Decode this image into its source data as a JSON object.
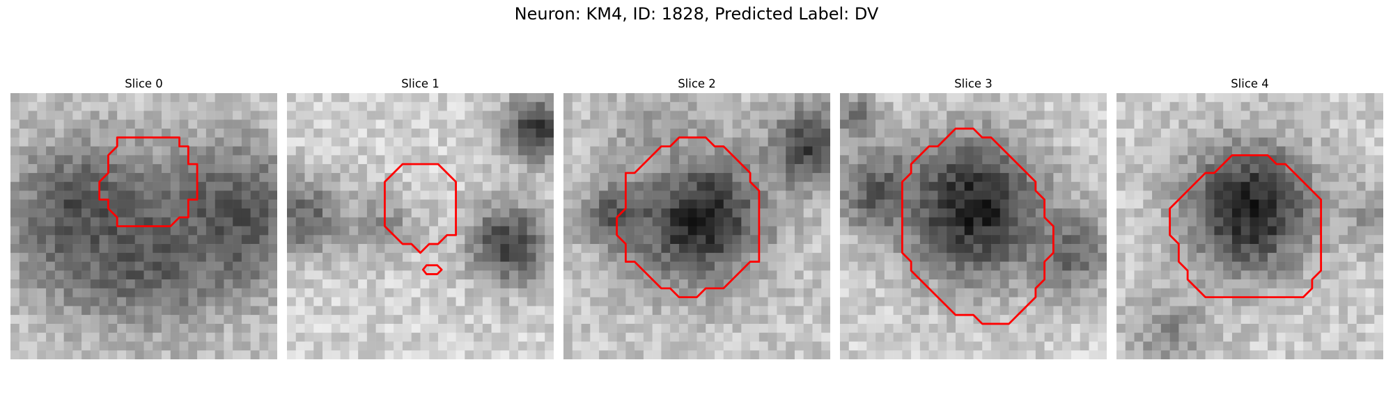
{
  "figure": {
    "title": "Neuron: KM4, ID: 1828, Predicted Label: DV",
    "contour_color": "#ff0000",
    "grid_size": 30,
    "panels": [
      {
        "title": "Slice 0",
        "image": "grayscale-microscopy-slice",
        "blobs": [
          {
            "x": 16,
            "y": 10,
            "r": 5.5,
            "v": 0.78
          },
          {
            "x": 8,
            "y": 14,
            "r": 9,
            "v": 0.3
          },
          {
            "x": 25,
            "y": 14,
            "r": 9,
            "v": 0.3
          },
          {
            "x": 15,
            "y": 18,
            "r": 9,
            "v": 0.35
          }
        ],
        "base": 0.78,
        "contours": [
          [
            [
              12,
              5
            ],
            [
              19,
              5
            ],
            [
              19,
              6
            ],
            [
              20,
              6
            ],
            [
              20,
              8
            ],
            [
              21,
              8
            ],
            [
              21,
              9
            ],
            [
              21,
              11
            ],
            [
              21,
              12
            ],
            [
              20,
              12
            ],
            [
              20,
              14
            ],
            [
              19,
              14
            ],
            [
              18,
              15
            ],
            [
              15,
              15
            ],
            [
              12,
              15
            ],
            [
              12,
              14
            ],
            [
              11,
              13
            ],
            [
              11,
              12
            ],
            [
              10,
              12
            ],
            [
              10,
              11
            ],
            [
              10,
              10
            ],
            [
              11,
              9
            ],
            [
              11,
              7
            ],
            [
              12,
              6
            ]
          ]
        ]
      },
      {
        "title": "Slice 1",
        "image": "grayscale-microscopy-slice",
        "blobs": [
          {
            "x": 2,
            "y": 14,
            "r": 5,
            "v": 0.4
          },
          {
            "x": 28,
            "y": 4,
            "r": 4,
            "v": 0.2
          },
          {
            "x": 25,
            "y": 17,
            "r": 5,
            "v": 0.25
          },
          {
            "x": 11,
            "y": 15,
            "r": 4,
            "v": 0.55
          }
        ],
        "base": 0.82,
        "contours": [
          [
            [
              13,
              8
            ],
            [
              17,
              8
            ],
            [
              19,
              10
            ],
            [
              19,
              16
            ],
            [
              18,
              16
            ],
            [
              17,
              17
            ],
            [
              16,
              17
            ],
            [
              15,
              18
            ],
            [
              14,
              17
            ],
            [
              13,
              17
            ],
            [
              12,
              16
            ],
            [
              11,
              15
            ],
            [
              11,
              10
            ]
          ],
          [
            [
              15.7,
              19.4
            ],
            [
              16.9,
              19.4
            ],
            [
              17.4,
              19.9
            ],
            [
              16.9,
              20.4
            ],
            [
              15.7,
              20.4
            ],
            [
              15.3,
              19.9
            ]
          ]
        ]
      },
      {
        "title": "Slice 2",
        "image": "grayscale-microscopy-slice",
        "blobs": [
          {
            "x": 15,
            "y": 14,
            "r": 8,
            "v": 0.12
          },
          {
            "x": 6,
            "y": 14,
            "r": 4,
            "v": 0.3
          },
          {
            "x": 28,
            "y": 6,
            "r": 5,
            "v": 0.25
          },
          {
            "x": 10,
            "y": 5,
            "r": 6,
            "v": 0.6
          }
        ],
        "base": 0.78,
        "contours": [
          [
            [
              13,
              5
            ],
            [
              16,
              5
            ],
            [
              17,
              6
            ],
            [
              18,
              6
            ],
            [
              19,
              7
            ],
            [
              20,
              8
            ],
            [
              21,
              9
            ],
            [
              21,
              10
            ],
            [
              22,
              11
            ],
            [
              22,
              19
            ],
            [
              21,
              19
            ],
            [
              20,
              20
            ],
            [
              19,
              21
            ],
            [
              18,
              22
            ],
            [
              16,
              22
            ],
            [
              15,
              23
            ],
            [
              13,
              23
            ],
            [
              12,
              22
            ],
            [
              11,
              22
            ],
            [
              9,
              20
            ],
            [
              8,
              19
            ],
            [
              7,
              19
            ],
            [
              7,
              17
            ],
            [
              6,
              16
            ],
            [
              6,
              14
            ],
            [
              7,
              13
            ],
            [
              7,
              9
            ],
            [
              8,
              9
            ],
            [
              9,
              8
            ],
            [
              10,
              7
            ],
            [
              11,
              6
            ],
            [
              12,
              6
            ]
          ]
        ]
      },
      {
        "title": "Slice 3",
        "image": "grayscale-microscopy-slice",
        "blobs": [
          {
            "x": 15,
            "y": 13,
            "r": 9,
            "v": 0.12
          },
          {
            "x": 4,
            "y": 11,
            "r": 5,
            "v": 0.35
          },
          {
            "x": 26,
            "y": 18,
            "r": 5,
            "v": 0.4
          },
          {
            "x": 2,
            "y": 3,
            "r": 3,
            "v": 0.4
          }
        ],
        "base": 0.82,
        "contours": [
          [
            [
              13,
              4
            ],
            [
              15,
              4
            ],
            [
              16,
              5
            ],
            [
              17,
              5
            ],
            [
              18,
              6
            ],
            [
              19,
              7
            ],
            [
              20,
              8
            ],
            [
              21,
              9
            ],
            [
              22,
              10
            ],
            [
              22,
              11
            ],
            [
              23,
              12
            ],
            [
              23,
              13
            ],
            [
              23,
              14
            ],
            [
              24,
              15
            ],
            [
              24,
              18
            ],
            [
              23,
              19
            ],
            [
              23,
              21
            ],
            [
              22,
              22
            ],
            [
              22,
              23
            ],
            [
              21,
              24
            ],
            [
              20,
              25
            ],
            [
              19,
              26
            ],
            [
              16,
              26
            ],
            [
              15,
              25
            ],
            [
              13,
              25
            ],
            [
              12,
              24
            ],
            [
              11,
              23
            ],
            [
              10,
              22
            ],
            [
              9,
              21
            ],
            [
              8,
              20
            ],
            [
              8,
              19
            ],
            [
              7,
              18
            ],
            [
              7,
              10
            ],
            [
              8,
              9
            ],
            [
              8,
              8
            ],
            [
              9,
              7
            ],
            [
              10,
              6
            ],
            [
              11,
              6
            ],
            [
              12,
              5
            ]
          ]
        ]
      },
      {
        "title": "Slice 4",
        "image": "grayscale-microscopy-slice",
        "blobs": [
          {
            "x": 15,
            "y": 13,
            "r": 8,
            "v": 0.12
          },
          {
            "x": 6,
            "y": 27,
            "r": 5,
            "v": 0.55
          },
          {
            "x": 29,
            "y": 14,
            "r": 4,
            "v": 0.55
          }
        ],
        "base": 0.8,
        "contours": [
          [
            [
              13,
              7
            ],
            [
              17,
              7
            ],
            [
              18,
              8
            ],
            [
              19,
              8
            ],
            [
              20,
              9
            ],
            [
              21,
              10
            ],
            [
              22,
              11
            ],
            [
              23,
              12
            ],
            [
              23,
              20
            ],
            [
              22,
              21
            ],
            [
              22,
              22
            ],
            [
              21,
              23
            ],
            [
              14,
              23
            ],
            [
              10,
              23
            ],
            [
              9,
              22
            ],
            [
              8,
              21
            ],
            [
              8,
              20
            ],
            [
              7,
              19
            ],
            [
              7,
              17
            ],
            [
              6,
              16
            ],
            [
              6,
              13
            ],
            [
              7,
              12
            ],
            [
              8,
              11
            ],
            [
              9,
              10
            ],
            [
              10,
              9
            ],
            [
              11,
              9
            ],
            [
              12,
              8
            ]
          ]
        ]
      }
    ]
  }
}
